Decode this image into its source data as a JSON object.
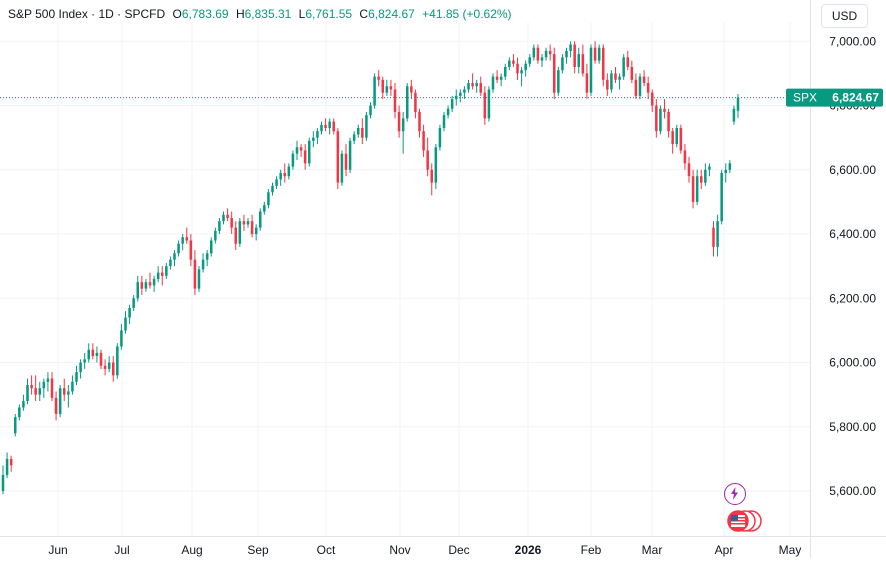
{
  "header": {
    "symbol_title": "S&P 500 Index · 1D · SPCFD",
    "open_label": "O",
    "open_value": "6,783.69",
    "high_label": "H",
    "high_value": "6,835.31",
    "low_label": "L",
    "low_value": "6,761.55",
    "close_label": "C",
    "close_value": "6,824.67",
    "change": "+41.85 (+0.62%)"
  },
  "currency_button": "USD",
  "last_price_tag": {
    "symbol": "SPX",
    "price": "6,824.67"
  },
  "colors": {
    "up": "#089981",
    "down": "#f23645",
    "price_line": "#089981",
    "grid": "#f0f3fa",
    "text": "#131722",
    "event_badge": "#9c27b0",
    "flag_badge": "#f23645"
  },
  "icons": {
    "event_badge": "lightning-icon",
    "flag_badge": "us-flag-icon"
  },
  "chart_data": {
    "type": "candlestick",
    "ylim": [
      5460,
      7060
    ],
    "y_ticks": [
      "7,000.00",
      "6,800.00",
      "6,600.00",
      "6,400.00",
      "6,200.00",
      "6,000.00",
      "5,800.00",
      "5,600.00"
    ],
    "x_ticks": [
      "Jun",
      "Jul",
      "Aug",
      "Sep",
      "Oct",
      "Nov",
      "Dec",
      "2026",
      "Feb",
      "Mar",
      "Apr",
      "May"
    ],
    "last_price": 6824.67,
    "candles": [
      [
        5600,
        5680,
        5590,
        5650
      ],
      [
        5650,
        5720,
        5640,
        5700
      ],
      [
        5700,
        5710,
        5660,
        5680
      ],
      [
        5780,
        5840,
        5770,
        5830
      ],
      [
        5830,
        5870,
        5820,
        5860
      ],
      [
        5860,
        5900,
        5850,
        5880
      ],
      [
        5880,
        5950,
        5870,
        5930
      ],
      [
        5930,
        5960,
        5900,
        5920
      ],
      [
        5920,
        5960,
        5880,
        5900
      ],
      [
        5900,
        5940,
        5880,
        5920
      ],
      [
        5920,
        5950,
        5890,
        5940
      ],
      [
        5940,
        5970,
        5910,
        5950
      ],
      [
        5950,
        5970,
        5880,
        5890
      ],
      [
        5890,
        5910,
        5820,
        5840
      ],
      [
        5840,
        5930,
        5830,
        5920
      ],
      [
        5920,
        5950,
        5880,
        5900
      ],
      [
        5900,
        5930,
        5860,
        5910
      ],
      [
        5910,
        5960,
        5900,
        5940
      ],
      [
        5940,
        5990,
        5930,
        5970
      ],
      [
        5970,
        6010,
        5950,
        6000
      ],
      [
        6000,
        6030,
        5980,
        6010
      ],
      [
        6010,
        6060,
        6000,
        6040
      ],
      [
        6040,
        6060,
        6010,
        6020
      ],
      [
        6020,
        6050,
        6000,
        6030
      ],
      [
        6030,
        6040,
        5980,
        5990
      ],
      [
        5990,
        6010,
        5960,
        5980
      ],
      [
        5980,
        6020,
        5970,
        6000
      ],
      [
        6000,
        6020,
        5940,
        5960
      ],
      [
        5960,
        6060,
        5950,
        6050
      ],
      [
        6050,
        6120,
        6040,
        6100
      ],
      [
        6100,
        6160,
        6090,
        6140
      ],
      [
        6140,
        6180,
        6120,
        6170
      ],
      [
        6170,
        6210,
        6160,
        6200
      ],
      [
        6200,
        6270,
        6190,
        6250
      ],
      [
        6250,
        6270,
        6210,
        6230
      ],
      [
        6230,
        6260,
        6220,
        6250
      ],
      [
        6250,
        6280,
        6230,
        6240
      ],
      [
        6240,
        6270,
        6220,
        6260
      ],
      [
        6260,
        6300,
        6250,
        6280
      ],
      [
        6280,
        6300,
        6240,
        6270
      ],
      [
        6270,
        6310,
        6260,
        6300
      ],
      [
        6300,
        6330,
        6290,
        6320
      ],
      [
        6320,
        6350,
        6300,
        6340
      ],
      [
        6340,
        6380,
        6330,
        6370
      ],
      [
        6370,
        6400,
        6350,
        6390
      ],
      [
        6390,
        6420,
        6370,
        6380
      ],
      [
        6380,
        6400,
        6300,
        6320
      ],
      [
        6320,
        6350,
        6210,
        6230
      ],
      [
        6230,
        6300,
        6220,
        6290
      ],
      [
        6290,
        6340,
        6280,
        6320
      ],
      [
        6320,
        6350,
        6300,
        6340
      ],
      [
        6340,
        6390,
        6330,
        6380
      ],
      [
        6380,
        6420,
        6370,
        6410
      ],
      [
        6410,
        6450,
        6400,
        6440
      ],
      [
        6440,
        6470,
        6430,
        6460
      ],
      [
        6460,
        6480,
        6440,
        6450
      ],
      [
        6450,
        6470,
        6400,
        6420
      ],
      [
        6420,
        6440,
        6350,
        6370
      ],
      [
        6370,
        6450,
        6360,
        6440
      ],
      [
        6440,
        6460,
        6410,
        6430
      ],
      [
        6430,
        6450,
        6420,
        6440
      ],
      [
        6440,
        6460,
        6390,
        6400
      ],
      [
        6400,
        6430,
        6380,
        6420
      ],
      [
        6420,
        6480,
        6410,
        6470
      ],
      [
        6470,
        6500,
        6460,
        6490
      ],
      [
        6490,
        6540,
        6480,
        6530
      ],
      [
        6530,
        6560,
        6520,
        6550
      ],
      [
        6550,
        6580,
        6540,
        6570
      ],
      [
        6570,
        6600,
        6550,
        6590
      ],
      [
        6590,
        6620,
        6560,
        6580
      ],
      [
        6580,
        6620,
        6570,
        6610
      ],
      [
        6610,
        6660,
        6600,
        6650
      ],
      [
        6650,
        6690,
        6630,
        6670
      ],
      [
        6670,
        6680,
        6640,
        6660
      ],
      [
        6660,
        6680,
        6600,
        6620
      ],
      [
        6620,
        6700,
        6610,
        6690
      ],
      [
        6690,
        6720,
        6670,
        6700
      ],
      [
        6700,
        6730,
        6680,
        6720
      ],
      [
        6720,
        6750,
        6710,
        6740
      ],
      [
        6740,
        6760,
        6720,
        6730
      ],
      [
        6730,
        6760,
        6710,
        6750
      ],
      [
        6750,
        6760,
        6710,
        6720
      ],
      [
        6720,
        6730,
        6540,
        6560
      ],
      [
        6560,
        6660,
        6550,
        6650
      ],
      [
        6650,
        6680,
        6580,
        6600
      ],
      [
        6600,
        6700,
        6590,
        6690
      ],
      [
        6690,
        6720,
        6680,
        6710
      ],
      [
        6710,
        6740,
        6700,
        6730
      ],
      [
        6730,
        6760,
        6680,
        6700
      ],
      [
        6700,
        6780,
        6690,
        6770
      ],
      [
        6770,
        6810,
        6760,
        6800
      ],
      [
        6800,
        6900,
        6790,
        6890
      ],
      [
        6890,
        6910,
        6860,
        6880
      ],
      [
        6880,
        6890,
        6820,
        6840
      ],
      [
        6840,
        6880,
        6830,
        6860
      ],
      [
        6860,
        6880,
        6830,
        6850
      ],
      [
        6850,
        6870,
        6760,
        6780
      ],
      [
        6780,
        6800,
        6700,
        6720
      ],
      [
        6720,
        6780,
        6650,
        6760
      ],
      [
        6760,
        6870,
        6750,
        6860
      ],
      [
        6860,
        6880,
        6820,
        6840
      ],
      [
        6840,
        6850,
        6760,
        6780
      ],
      [
        6780,
        6790,
        6700,
        6720
      ],
      [
        6720,
        6740,
        6640,
        6660
      ],
      [
        6660,
        6700,
        6580,
        6600
      ],
      [
        6600,
        6620,
        6520,
        6560
      ],
      [
        6560,
        6680,
        6540,
        6670
      ],
      [
        6670,
        6740,
        6660,
        6730
      ],
      [
        6730,
        6780,
        6720,
        6770
      ],
      [
        6770,
        6800,
        6760,
        6790
      ],
      [
        6790,
        6830,
        6780,
        6820
      ],
      [
        6820,
        6850,
        6800,
        6830
      ],
      [
        6830,
        6850,
        6810,
        6840
      ],
      [
        6840,
        6860,
        6820,
        6850
      ],
      [
        6850,
        6880,
        6840,
        6870
      ],
      [
        6870,
        6900,
        6850,
        6860
      ],
      [
        6860,
        6880,
        6840,
        6870
      ],
      [
        6870,
        6890,
        6830,
        6840
      ],
      [
        6840,
        6860,
        6740,
        6760
      ],
      [
        6760,
        6860,
        6750,
        6850
      ],
      [
        6850,
        6900,
        6840,
        6890
      ],
      [
        6890,
        6910,
        6870,
        6880
      ],
      [
        6880,
        6900,
        6860,
        6890
      ],
      [
        6890,
        6930,
        6880,
        6920
      ],
      [
        6920,
        6950,
        6910,
        6940
      ],
      [
        6940,
        6960,
        6920,
        6930
      ],
      [
        6930,
        6950,
        6880,
        6900
      ],
      [
        6900,
        6920,
        6860,
        6910
      ],
      [
        6910,
        6940,
        6890,
        6930
      ],
      [
        6930,
        6960,
        6920,
        6950
      ],
      [
        6950,
        6990,
        6940,
        6980
      ],
      [
        6980,
        6990,
        6930,
        6940
      ],
      [
        6940,
        6960,
        6920,
        6950
      ],
      [
        6950,
        6980,
        6940,
        6970
      ],
      [
        6970,
        6990,
        6940,
        6960
      ],
      [
        6960,
        6980,
        6820,
        6840
      ],
      [
        6840,
        6920,
        6830,
        6910
      ],
      [
        6910,
        6960,
        6900,
        6950
      ],
      [
        6950,
        6980,
        6930,
        6970
      ],
      [
        6970,
        7000,
        6950,
        6990
      ],
      [
        6990,
        7000,
        6900,
        6920
      ],
      [
        6920,
        6980,
        6900,
        6960
      ],
      [
        6960,
        6990,
        6890,
        6900
      ],
      [
        6900,
        6930,
        6820,
        6840
      ],
      [
        6840,
        6990,
        6830,
        6980
      ],
      [
        6980,
        7000,
        6930,
        6940
      ],
      [
        6940,
        6990,
        6930,
        6980
      ],
      [
        6980,
        6990,
        6860,
        6880
      ],
      [
        6880,
        6900,
        6830,
        6850
      ],
      [
        6850,
        6910,
        6840,
        6900
      ],
      [
        6900,
        6920,
        6870,
        6880
      ],
      [
        6880,
        6900,
        6850,
        6890
      ],
      [
        6890,
        6960,
        6880,
        6950
      ],
      [
        6950,
        6970,
        6910,
        6920
      ],
      [
        6920,
        6940,
        6870,
        6880
      ],
      [
        6880,
        6900,
        6820,
        6830
      ],
      [
        6830,
        6900,
        6820,
        6890
      ],
      [
        6890,
        6910,
        6860,
        6870
      ],
      [
        6870,
        6890,
        6820,
        6840
      ],
      [
        6840,
        6850,
        6780,
        6800
      ],
      [
        6800,
        6820,
        6700,
        6720
      ],
      [
        6720,
        6800,
        6710,
        6790
      ],
      [
        6790,
        6820,
        6760,
        6780
      ],
      [
        6780,
        6790,
        6700,
        6720
      ],
      [
        6720,
        6730,
        6650,
        6680
      ],
      [
        6680,
        6740,
        6670,
        6730
      ],
      [
        6730,
        6740,
        6650,
        6660
      ],
      [
        6660,
        6680,
        6600,
        6620
      ],
      [
        6620,
        6640,
        6560,
        6580
      ],
      [
        6580,
        6600,
        6480,
        6500
      ],
      [
        6500,
        6600,
        6490,
        6580
      ],
      [
        6580,
        6600,
        6540,
        6560
      ],
      [
        6560,
        6620,
        6550,
        6600
      ],
      [
        6600,
        6620,
        6580,
        6610
      ],
      [
        6420,
        6440,
        6330,
        6360
      ],
      [
        6360,
        6460,
        6330,
        6440
      ],
      [
        6440,
        6600,
        6430,
        6590
      ],
      [
        6590,
        6620,
        6560,
        6600
      ],
      [
        6600,
        6630,
        6590,
        6620
      ],
      [
        6750,
        6800,
        6740,
        6790
      ],
      [
        6783.69,
        6835.31,
        6761.55,
        6824.67
      ]
    ]
  }
}
